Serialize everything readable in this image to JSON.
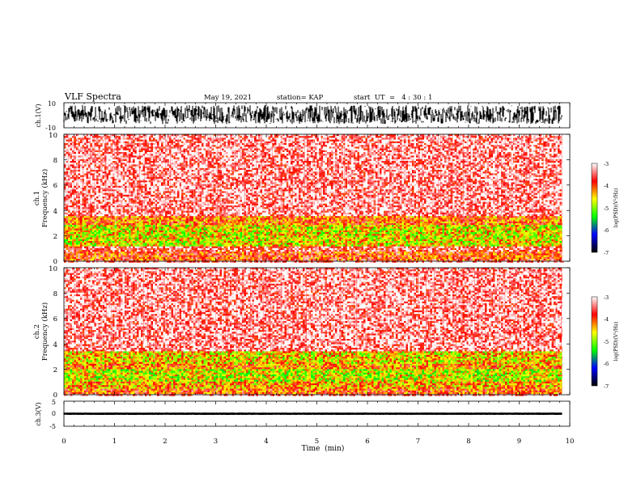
{
  "header": {
    "title": "VLF Spectra",
    "date": "May 19, 2021",
    "station": "station= KAP",
    "start": "start  UT  =   4 : 30 : 1"
  },
  "chart_data": [
    {
      "type": "line",
      "panel": "waveform-ch1",
      "ylabel": "ch.1(V)",
      "ylim": [
        -10,
        10
      ],
      "y_ticks": [
        "10",
        "-10"
      ],
      "xlim": [
        0,
        10
      ],
      "trace_color": "#000000",
      "approx_amplitude": [
        -7,
        8
      ]
    },
    {
      "type": "heatmap",
      "panel": "spectrogram-ch1",
      "ylabel": "ch.1\nFrequency  (kHz)",
      "ylim": [
        0,
        10
      ],
      "y_ticks": [
        "0",
        "2",
        "4",
        "6",
        "8",
        "10"
      ],
      "xlim": [
        0,
        9.85
      ],
      "approx_bands_khz": [
        {
          "from": 0.0,
          "to": 0.7,
          "level": -3.9
        },
        {
          "from": 0.7,
          "to": 1.2,
          "level": -3.5
        },
        {
          "from": 1.2,
          "to": 2.9,
          "level": -4.6
        },
        {
          "from": 2.9,
          "to": 3.6,
          "level": -4.1
        },
        {
          "from": 3.6,
          "to": 10.0,
          "level": -3.3
        }
      ],
      "colorbar": {
        "label": "log(PSD)(V²/Hz)",
        "min": -7,
        "max": -3,
        "ticks": [
          "-3",
          "-4",
          "-5",
          "-6",
          "-7"
        ],
        "colors": [
          "#ffffff",
          "#ff0000",
          "#ffff00",
          "#00ff00",
          "#0000ff",
          "#000000"
        ]
      }
    },
    {
      "type": "heatmap",
      "panel": "spectrogram-ch2",
      "ylabel": "ch.2\nFrequency  (kHz)",
      "ylim": [
        0,
        10
      ],
      "y_ticks": [
        "0",
        "2",
        "4",
        "6",
        "8",
        "10"
      ],
      "xlim": [
        0,
        9.85
      ],
      "approx_bands_khz": [
        {
          "from": 0.0,
          "to": 0.5,
          "level": -4.0
        },
        {
          "from": 0.5,
          "to": 1.0,
          "level": -4.3
        },
        {
          "from": 1.0,
          "to": 2.0,
          "level": -4.7
        },
        {
          "from": 2.0,
          "to": 2.5,
          "level": -4.2
        },
        {
          "from": 2.5,
          "to": 3.4,
          "level": -4.5
        },
        {
          "from": 3.4,
          "to": 10.0,
          "level": -3.3
        }
      ],
      "colorbar": {
        "label": "log(PSD)(V²/Hz)",
        "min": -7,
        "max": -3,
        "ticks": [
          "-3",
          "-4",
          "-5",
          "-6",
          "-7"
        ],
        "colors": [
          "#ffffff",
          "#ff0000",
          "#ffff00",
          "#00ff00",
          "#0000ff",
          "#000000"
        ]
      }
    },
    {
      "type": "line",
      "panel": "waveform-ch3",
      "ylabel": "ch.3(V)",
      "ylim": [
        -5,
        5
      ],
      "y_ticks": [
        "5",
        "0",
        "-5"
      ],
      "xlim": [
        0,
        10
      ],
      "xlabel": "Time  (min)",
      "x_ticks": [
        "0",
        "1",
        "2",
        "3",
        "4",
        "5",
        "6",
        "7",
        "8",
        "9",
        "10"
      ],
      "trace_color": "#000000",
      "approx_level": 0,
      "approx_amplitude": [
        -0.4,
        0.4
      ]
    }
  ]
}
